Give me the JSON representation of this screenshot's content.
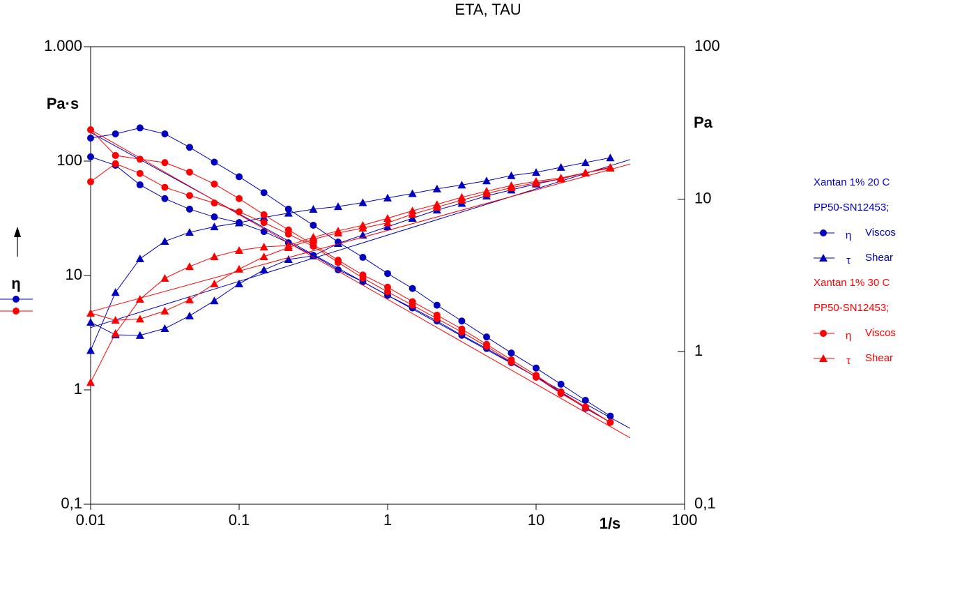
{
  "chart_data": {
    "type": "line",
    "title": "ETA, TAU",
    "xscale": "log",
    "yscale": "log",
    "x_label": "1/s",
    "y_label": "Pa·s",
    "y2_label": "Pa",
    "y_symbol": "η",
    "xlim": [
      0.01,
      100
    ],
    "xticks": [
      0.01,
      0.1,
      1,
      10,
      100
    ],
    "ylim": [
      0.1,
      1000
    ],
    "yticks": [
      {
        "value": 0.1,
        "label": "0,1"
      },
      1,
      10,
      100,
      {
        "value": 1000,
        "label": "1.000"
      }
    ],
    "y2lim": [
      0.1,
      100
    ],
    "y2ticks": [
      {
        "value": 0.1,
        "label": "0,1"
      },
      1,
      10,
      100
    ],
    "x": [
      0.01,
      0.0147,
      0.0215,
      0.0316,
      0.0464,
      0.0681,
      0.1,
      0.147,
      0.215,
      0.316,
      0.464,
      0.681,
      1,
      1.47,
      2.15,
      3.16,
      4.64,
      6.81,
      10,
      14.7,
      21.5,
      31.6
    ],
    "fit_x": [
      0.01,
      43
    ],
    "datasets": [
      {
        "label": "Xantan 1% 20 C",
        "sublabel": "PP50-SN12453;",
        "color": "#0000c0",
        "series": [
          {
            "symbol": "η",
            "name": "Viscos",
            "marker": "circle",
            "axis": "y",
            "sweeps": [
              [
                159,
                173,
                195,
                173,
                132,
                98,
                73,
                53,
                38,
                27.5,
                19.6,
                14.4,
                10.4,
                7.7,
                5.5,
                4.0,
                2.9,
                2.1,
                1.55,
                1.12,
                0.81,
                0.59
              ],
              [
                109,
                92,
                62,
                47,
                38,
                32.5,
                29,
                24.2,
                19.3,
                15,
                11.2,
                8.8,
                6.7,
                5.2,
                4.0,
                3.0,
                2.3,
                1.73,
                1.29,
                0.95,
                0.69,
                0.52
              ]
            ],
            "fit": [
              178,
              0.46
            ]
          },
          {
            "symbol": "τ",
            "name": "Shear",
            "marker": "triangle",
            "axis": "y2",
            "sweeps": [
              [
                1.02,
                2.45,
                4.07,
                5.3,
                6.07,
                6.6,
                7.0,
                7.6,
                8.1,
                8.6,
                8.96,
                9.5,
                10.2,
                10.9,
                11.7,
                12.4,
                13.2,
                14.3,
                15.0,
                16.2,
                17.4,
                18.7
              ],
              [
                1.56,
                1.29,
                1.28,
                1.42,
                1.72,
                2.16,
                2.79,
                3.44,
                4.03,
                4.25,
                5.13,
                5.82,
                6.6,
                7.5,
                8.5,
                9.4,
                10.5,
                11.5,
                12.6,
                13.6,
                14.9,
                16.0
              ]
            ],
            "fit": [
              1.44,
              18.2
            ]
          }
        ]
      },
      {
        "label": "Xantan 1% 30 C",
        "sublabel": "PP50-SN12453;",
        "color": "#ff0000",
        "series": [
          {
            "symbol": "η",
            "name": "Viscos",
            "marker": "circle",
            "axis": "y",
            "sweeps": [
              [
                188,
                112,
                104,
                97,
                80,
                63,
                47,
                34,
                25,
                18.6,
                13.6,
                10.1,
                7.9,
                5.9,
                4.5,
                3.4,
                2.5,
                1.83,
                1.34,
                0.96,
                0.71,
                0.52
              ],
              [
                66,
                95,
                78,
                59,
                50,
                43,
                36,
                29,
                23,
                18,
                13,
                9.5,
                7.2,
                5.5,
                4.2,
                3.2,
                2.4,
                1.75,
                1.29,
                0.93,
                0.7,
                0.52
              ]
            ],
            "fit": [
              188,
              0.38
            ]
          },
          {
            "symbol": "τ",
            "name": "Shear",
            "marker": "triangle",
            "axis": "y2",
            "sweeps": [
              [
                0.63,
                1.32,
                2.21,
                3.03,
                3.62,
                4.2,
                4.62,
                4.87,
                4.97,
                5.64,
                6.2,
                6.75,
                7.5,
                8.4,
                9.25,
                10.3,
                11.3,
                12.3,
                13.1,
                13.8,
                14.9,
                16.2
              ],
              [
                1.79,
                1.61,
                1.64,
                1.85,
                2.19,
                2.79,
                3.48,
                4.2,
                4.82,
                5.47,
                6.01,
                6.47,
                7.0,
                7.98,
                8.87,
                9.86,
                10.9,
                11.9,
                12.8,
                13.6,
                14.9,
                16.0
              ]
            ],
            "fit": [
              1.83,
              17.0
            ]
          }
        ]
      }
    ]
  }
}
